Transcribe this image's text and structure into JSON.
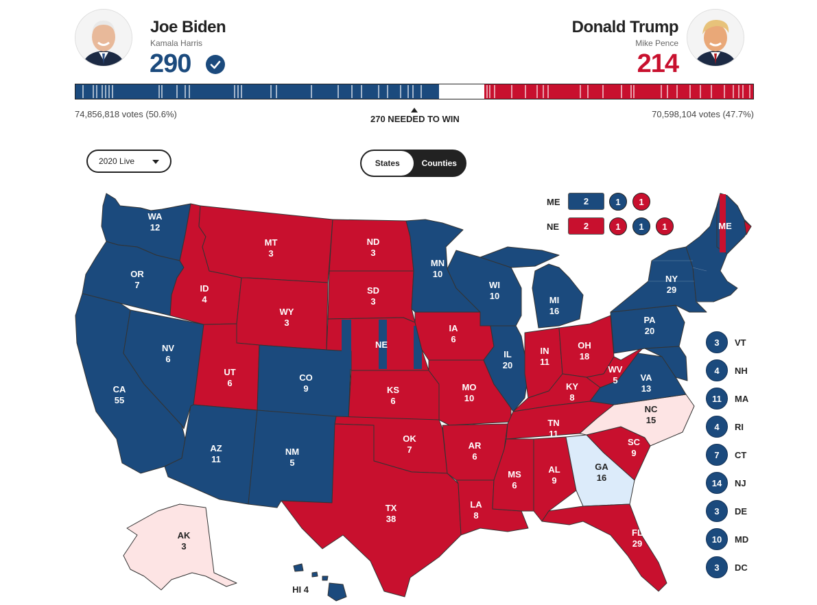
{
  "colors": {
    "dem": "#1b4a7d",
    "rep": "#c8102e",
    "lean_dem": "#dcebfa",
    "lean_rep": "#fde4e4",
    "undecided": "#ffffff"
  },
  "biden": {
    "name": "Joe Biden",
    "running_mate": "Kamala Harris",
    "ev": "290",
    "votes": "74,856,818 votes (50.6%)",
    "avatar": "biden-photo"
  },
  "trump": {
    "name": "Donald Trump",
    "running_mate": "Mike Pence",
    "ev": "214",
    "votes": "70,598,104 votes (47.7%)",
    "avatar": "trump-photo"
  },
  "needed": "270 NEEDED TO WIN",
  "dropdown": "2020 Live",
  "view_toggle": {
    "states": "States",
    "counties": "Counties"
  },
  "split": {
    "me": {
      "label": "ME",
      "at_large": "2",
      "d1": "1",
      "d2": "1"
    },
    "ne": {
      "label": "NE",
      "at_large": "2",
      "d1": "1",
      "d2": "1",
      "d3": "1"
    }
  },
  "states": {
    "WA": {
      "abbr": "WA",
      "ev": "12"
    },
    "OR": {
      "abbr": "OR",
      "ev": "7"
    },
    "CA": {
      "abbr": "CA",
      "ev": "55"
    },
    "NV": {
      "abbr": "NV",
      "ev": "6"
    },
    "ID": {
      "abbr": "ID",
      "ev": "4"
    },
    "MT": {
      "abbr": "MT",
      "ev": "3"
    },
    "WY": {
      "abbr": "WY",
      "ev": "3"
    },
    "UT": {
      "abbr": "UT",
      "ev": "6"
    },
    "AZ": {
      "abbr": "AZ",
      "ev": "11"
    },
    "CO": {
      "abbr": "CO",
      "ev": "9"
    },
    "NM": {
      "abbr": "NM",
      "ev": "5"
    },
    "ND": {
      "abbr": "ND",
      "ev": "3"
    },
    "SD": {
      "abbr": "SD",
      "ev": "3"
    },
    "NE": {
      "abbr": "NE",
      "ev": ""
    },
    "KS": {
      "abbr": "KS",
      "ev": "6"
    },
    "OK": {
      "abbr": "OK",
      "ev": "7"
    },
    "TX": {
      "abbr": "TX",
      "ev": "38"
    },
    "MN": {
      "abbr": "MN",
      "ev": "10"
    },
    "IA": {
      "abbr": "IA",
      "ev": "6"
    },
    "MO": {
      "abbr": "MO",
      "ev": "10"
    },
    "AR": {
      "abbr": "AR",
      "ev": "6"
    },
    "LA": {
      "abbr": "LA",
      "ev": "8"
    },
    "WI": {
      "abbr": "WI",
      "ev": "10"
    },
    "IL": {
      "abbr": "IL",
      "ev": "20"
    },
    "MI": {
      "abbr": "MI",
      "ev": "16"
    },
    "IN": {
      "abbr": "IN",
      "ev": "11"
    },
    "OH": {
      "abbr": "OH",
      "ev": "18"
    },
    "KY": {
      "abbr": "KY",
      "ev": "8"
    },
    "TN": {
      "abbr": "TN",
      "ev": "11"
    },
    "MS": {
      "abbr": "MS",
      "ev": "6"
    },
    "AL": {
      "abbr": "AL",
      "ev": "9"
    },
    "GA": {
      "abbr": "GA",
      "ev": "16"
    },
    "FL": {
      "abbr": "FL",
      "ev": "29"
    },
    "SC": {
      "abbr": "SC",
      "ev": "9"
    },
    "NC": {
      "abbr": "NC",
      "ev": "15"
    },
    "VA": {
      "abbr": "VA",
      "ev": "13"
    },
    "WV": {
      "abbr": "WV",
      "ev": "5"
    },
    "PA": {
      "abbr": "PA",
      "ev": "20"
    },
    "NY": {
      "abbr": "NY",
      "ev": "29"
    },
    "ME": {
      "abbr": "ME",
      "ev": ""
    },
    "AK": {
      "abbr": "AK",
      "ev": "3"
    },
    "HI": {
      "label": "HI 4"
    }
  },
  "small_states": [
    {
      "abbr": "VT",
      "ev": "3"
    },
    {
      "abbr": "NH",
      "ev": "4"
    },
    {
      "abbr": "MA",
      "ev": "11"
    },
    {
      "abbr": "RI",
      "ev": "4"
    },
    {
      "abbr": "CT",
      "ev": "7"
    },
    {
      "abbr": "NJ",
      "ev": "14"
    },
    {
      "abbr": "DE",
      "ev": "3"
    },
    {
      "abbr": "MD",
      "ev": "10"
    },
    {
      "abbr": "DC",
      "ev": "3"
    }
  ]
}
